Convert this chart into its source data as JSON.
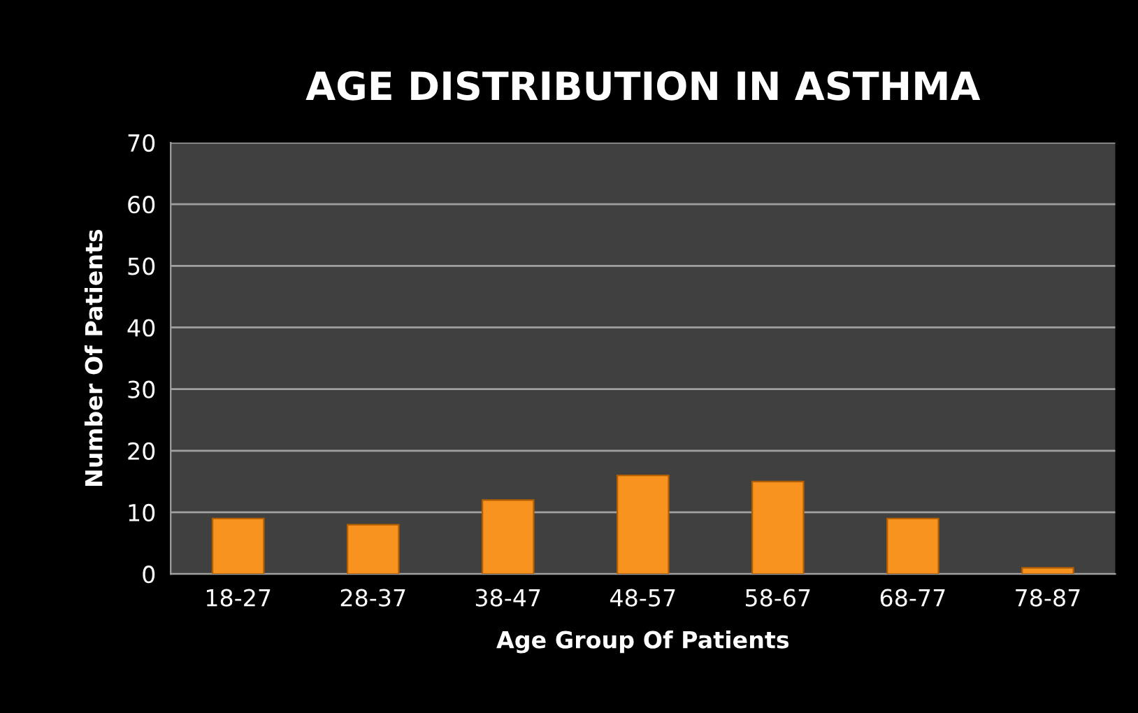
{
  "chart_data": {
    "type": "bar",
    "title": "AGE DISTRIBUTION IN ASTHMA",
    "xlabel": "Age Group Of Patients",
    "ylabel": "Number Of Patients",
    "categories": [
      "18-27",
      "28-37",
      "38-47",
      "48-57",
      "58-67",
      "68-77",
      "78-87"
    ],
    "values": [
      9,
      8,
      12,
      16,
      15,
      9,
      1
    ],
    "color": "#f7931e",
    "ylim": [
      0,
      70
    ],
    "yticks": [
      0,
      10,
      20,
      30,
      40,
      50,
      60,
      70
    ],
    "grid": "y"
  }
}
